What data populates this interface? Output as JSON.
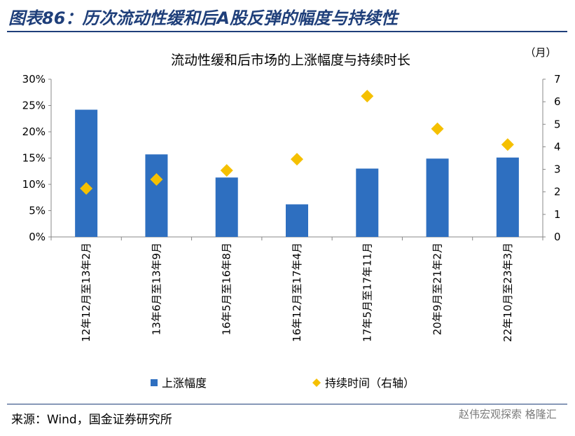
{
  "header": {
    "title": "图表86：历次流动性缓和后A股反弹的幅度与持续性"
  },
  "source": "来源：Wind，国金证券研究所",
  "watermark": "赵伟宏观探索  格隆汇",
  "colors": {
    "bar": "#2e6fc0",
    "marker": "#f5c000",
    "header": "#1f3f7a"
  },
  "chart_data": {
    "type": "bar",
    "title": "流动性缓和后市场的上涨幅度与持续时长",
    "categories": [
      "12年12月至13年2月",
      "13年6月至13年9月",
      "16年5月至16年8月",
      "16年12月至17年4月",
      "17年5月至17年11月",
      "20年9月至21年2月",
      "22年10月至23年3月"
    ],
    "series": [
      {
        "name": "上涨幅度",
        "type": "bar",
        "axis": "left",
        "values": [
          0.242,
          0.157,
          0.113,
          0.062,
          0.13,
          0.149,
          0.151
        ]
      },
      {
        "name": "持续时间（右轴）",
        "type": "scatter",
        "marker": "diamond",
        "axis": "right",
        "values": [
          2.15,
          2.55,
          2.95,
          3.45,
          6.25,
          4.8,
          4.1
        ]
      }
    ],
    "y_left": {
      "ylim": [
        0,
        0.3
      ],
      "ticks": [
        "0%",
        "5%",
        "10%",
        "15%",
        "20%",
        "25%",
        "30%"
      ]
    },
    "y_right": {
      "ylim": [
        0,
        7
      ],
      "unit": "（月）",
      "ticks": [
        "0",
        "1",
        "2",
        "3",
        "4",
        "5",
        "6",
        "7"
      ]
    },
    "legend": "bottom",
    "grid": false
  }
}
